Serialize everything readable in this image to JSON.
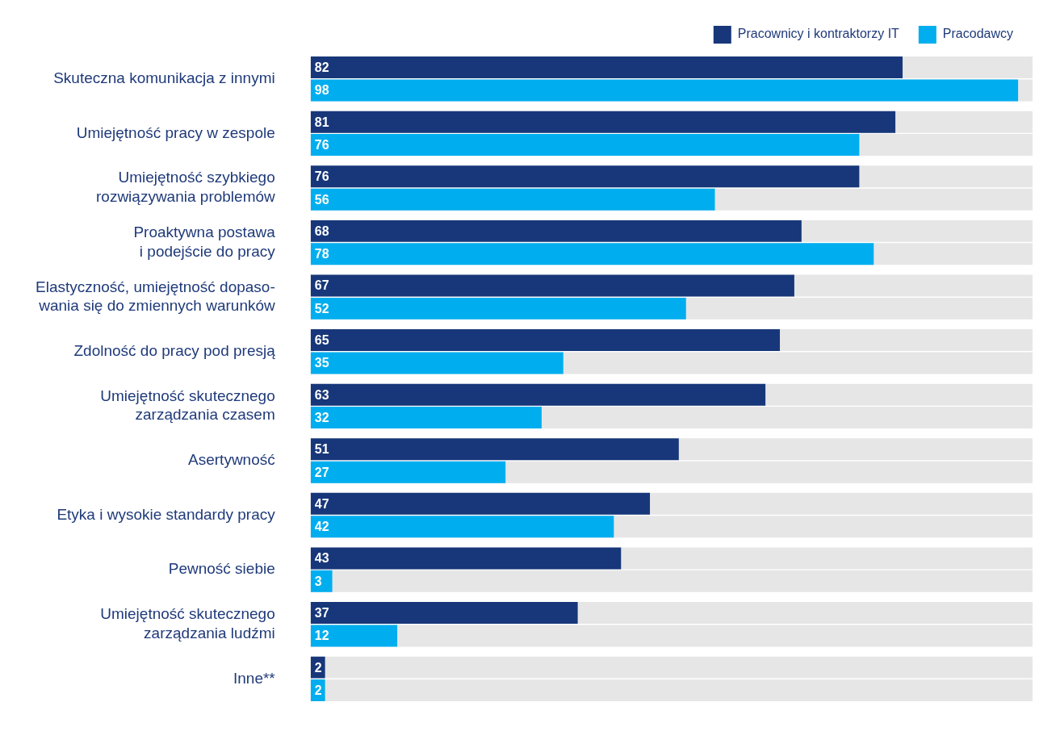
{
  "chart_data": {
    "type": "bar",
    "orientation": "horizontal",
    "categories": [
      "Skuteczna komunikacja z innymi",
      "Umiejętność pracy w zespole",
      "Umiejętność szybkiego\nrozwiązywania problemów",
      "Proaktywna postawa\ni podejście do pracy",
      "Elastyczność, umiejętność dopaso-\nwania się do zmiennych warunków",
      "Zdolność do pracy pod presją",
      "Umiejętność skutecznego\nzarządzania czasem",
      "Asertywność",
      "Etyka i wysokie standardy pracy",
      "Pewność siebie",
      "Umiejętność skutecznego\nzarządzania ludźmi",
      "Inne**"
    ],
    "series": [
      {
        "name": "Pracownicy i kontraktorzy IT",
        "color": "#17377a",
        "values": [
          82,
          81,
          76,
          68,
          67,
          65,
          63,
          51,
          47,
          43,
          37,
          2
        ]
      },
      {
        "name": "Pracodawcy",
        "color": "#00aeef",
        "values": [
          98,
          76,
          56,
          78,
          52,
          35,
          32,
          27,
          42,
          3,
          12,
          2
        ]
      }
    ],
    "xlim": [
      0,
      100
    ],
    "data_labels": true,
    "legend": "top right",
    "grid": false,
    "tick_labels": "y"
  }
}
